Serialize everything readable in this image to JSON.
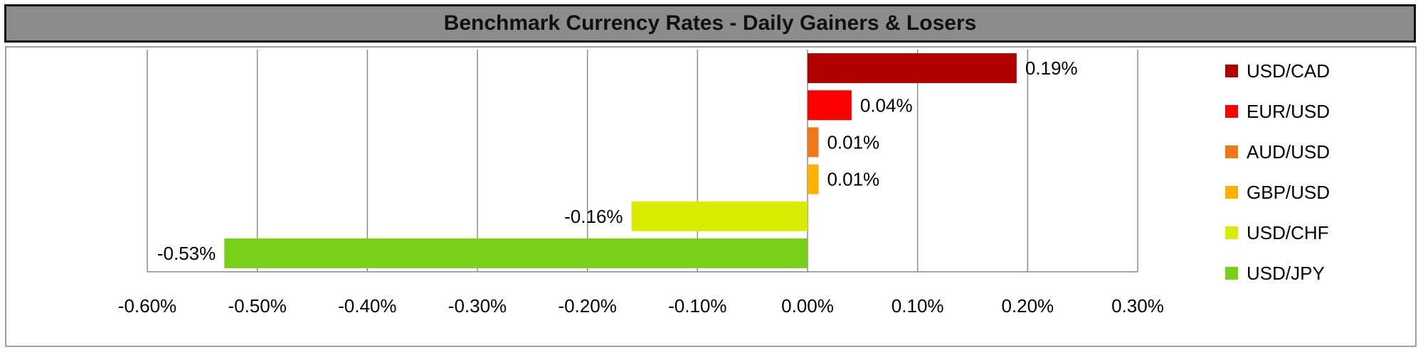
{
  "chart_data": {
    "type": "bar",
    "orientation": "horizontal",
    "title": "Benchmark Currency Rates - Daily Gainers & Losers",
    "categories": [
      "USD/CAD",
      "EUR/USD",
      "AUD/USD",
      "GBP/USD",
      "USD/CHF",
      "USD/JPY"
    ],
    "values": [
      0.19,
      0.04,
      0.01,
      0.01,
      -0.16,
      -0.53
    ],
    "data_labels": [
      "0.19%",
      "0.04%",
      "0.01%",
      "0.01%",
      "-0.16%",
      "-0.53%"
    ],
    "colors": [
      "#b20000",
      "#ff0000",
      "#f07818",
      "#ffb000",
      "#d8ec00",
      "#78d018"
    ],
    "xlim": [
      -0.6,
      0.3
    ],
    "xticks": [
      "-0.60%",
      "-0.50%",
      "-0.40%",
      "-0.30%",
      "-0.20%",
      "-0.10%",
      "0.00%",
      "0.10%",
      "0.20%",
      "0.30%"
    ],
    "xlabel": "",
    "ylabel": "",
    "grid": true,
    "legend_position": "right"
  }
}
